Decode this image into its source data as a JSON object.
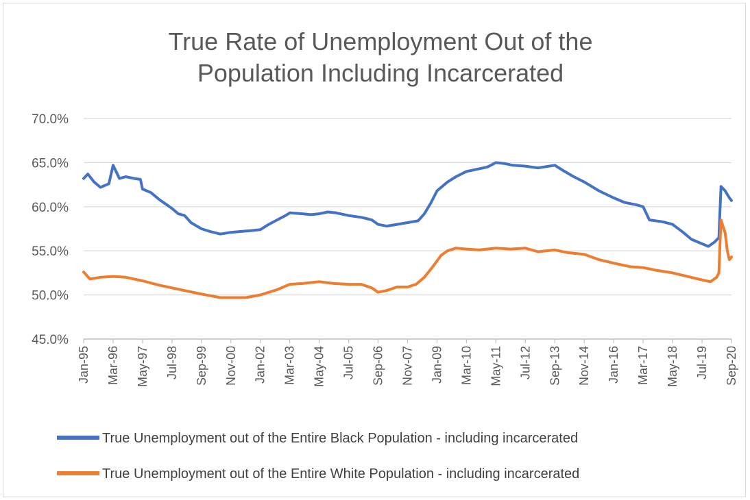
{
  "chart_data": {
    "type": "line",
    "title_lines": [
      "True Rate of Unemployment Out of the",
      "Population Including Incarcerated"
    ],
    "ylim": [
      0.45,
      0.7
    ],
    "y_ticks": [
      "45.0%",
      "50.0%",
      "55.0%",
      "60.0%",
      "65.0%",
      "70.0%"
    ],
    "y_tick_values": [
      0.45,
      0.5,
      0.55,
      0.6,
      0.65,
      0.7
    ],
    "grid": true,
    "x_range": [
      "1995-01",
      "2020-09"
    ],
    "x_ticks": [
      "Jan-95",
      "Mar-96",
      "May-97",
      "Jul-98",
      "Sep-99",
      "Nov-00",
      "Jan-02",
      "Mar-03",
      "May-04",
      "Jul-05",
      "Sep-06",
      "Nov-07",
      "Jan-09",
      "Mar-10",
      "May-11",
      "Jul-12",
      "Sep-13",
      "Nov-14",
      "Jan-16",
      "Mar-17",
      "May-18",
      "Jul-19",
      "Sep-20"
    ],
    "x_tick_dates": [
      "1995-01",
      "1996-03",
      "1997-05",
      "1998-07",
      "1999-09",
      "2000-11",
      "2002-01",
      "2003-03",
      "2004-05",
      "2005-07",
      "2006-09",
      "2007-11",
      "2009-01",
      "2010-03",
      "2011-05",
      "2012-07",
      "2013-09",
      "2014-11",
      "2016-01",
      "2017-03",
      "2018-05",
      "2019-07",
      "2020-09"
    ],
    "legend_position": "bottom",
    "series": [
      {
        "name": "True Unemployment out of the Entire Black Population - including incarcerated",
        "color": "#4472C4",
        "points": [
          [
            "1995-01",
            0.632
          ],
          [
            "1995-03",
            0.637
          ],
          [
            "1995-06",
            0.628
          ],
          [
            "1995-09",
            0.622
          ],
          [
            "1996-01",
            0.626
          ],
          [
            "1996-03",
            0.647
          ],
          [
            "1996-06",
            0.632
          ],
          [
            "1996-09",
            0.634
          ],
          [
            "1997-01",
            0.632
          ],
          [
            "1997-04",
            0.631
          ],
          [
            "1997-05",
            0.62
          ],
          [
            "1997-09",
            0.616
          ],
          [
            "1998-01",
            0.608
          ],
          [
            "1998-04",
            0.603
          ],
          [
            "1998-07",
            0.598
          ],
          [
            "1998-10",
            0.592
          ],
          [
            "1999-01",
            0.59
          ],
          [
            "1999-04",
            0.582
          ],
          [
            "1999-09",
            0.575
          ],
          [
            "2000-01",
            0.572
          ],
          [
            "2000-06",
            0.569
          ],
          [
            "2000-11",
            0.571
          ],
          [
            "2001-04",
            0.572
          ],
          [
            "2001-09",
            0.573
          ],
          [
            "2002-01",
            0.574
          ],
          [
            "2002-05",
            0.58
          ],
          [
            "2002-09",
            0.585
          ],
          [
            "2003-01",
            0.59
          ],
          [
            "2003-03",
            0.593
          ],
          [
            "2003-09",
            0.592
          ],
          [
            "2004-01",
            0.591
          ],
          [
            "2004-05",
            0.592
          ],
          [
            "2004-09",
            0.594
          ],
          [
            "2005-01",
            0.593
          ],
          [
            "2005-07",
            0.59
          ],
          [
            "2006-01",
            0.588
          ],
          [
            "2006-06",
            0.585
          ],
          [
            "2006-09",
            0.58
          ],
          [
            "2007-01",
            0.578
          ],
          [
            "2007-06",
            0.58
          ],
          [
            "2007-11",
            0.582
          ],
          [
            "2008-04",
            0.584
          ],
          [
            "2008-07",
            0.592
          ],
          [
            "2008-10",
            0.604
          ],
          [
            "2009-01",
            0.618
          ],
          [
            "2009-06",
            0.628
          ],
          [
            "2009-10",
            0.634
          ],
          [
            "2010-03",
            0.64
          ],
          [
            "2010-09",
            0.643
          ],
          [
            "2011-01",
            0.645
          ],
          [
            "2011-05",
            0.65
          ],
          [
            "2011-09",
            0.649
          ],
          [
            "2012-01",
            0.647
          ],
          [
            "2012-07",
            0.646
          ],
          [
            "2013-01",
            0.644
          ],
          [
            "2013-09",
            0.647
          ],
          [
            "2014-01",
            0.641
          ],
          [
            "2014-06",
            0.634
          ],
          [
            "2014-11",
            0.628
          ],
          [
            "2015-06",
            0.618
          ],
          [
            "2016-01",
            0.61
          ],
          [
            "2016-06",
            0.605
          ],
          [
            "2016-12",
            0.602
          ],
          [
            "2017-03",
            0.6
          ],
          [
            "2017-06",
            0.585
          ],
          [
            "2017-12",
            0.583
          ],
          [
            "2018-05",
            0.58
          ],
          [
            "2018-10",
            0.571
          ],
          [
            "2019-02",
            0.563
          ],
          [
            "2019-07",
            0.558
          ],
          [
            "2019-10",
            0.555
          ],
          [
            "2020-01",
            0.56
          ],
          [
            "2020-03",
            0.565
          ],
          [
            "2020-04",
            0.623
          ],
          [
            "2020-06",
            0.618
          ],
          [
            "2020-08",
            0.61
          ],
          [
            "2020-09",
            0.607
          ]
        ]
      },
      {
        "name": "True Unemployment out of the Entire White Population - including incarcerated",
        "color": "#ED7D31",
        "points": [
          [
            "1995-01",
            0.526
          ],
          [
            "1995-04",
            0.518
          ],
          [
            "1995-09",
            0.52
          ],
          [
            "1996-03",
            0.521
          ],
          [
            "1996-09",
            0.52
          ],
          [
            "1997-05",
            0.516
          ],
          [
            "1998-01",
            0.511
          ],
          [
            "1998-07",
            0.508
          ],
          [
            "1999-01",
            0.505
          ],
          [
            "1999-09",
            0.501
          ],
          [
            "2000-06",
            0.497
          ],
          [
            "2000-11",
            0.497
          ],
          [
            "2001-06",
            0.497
          ],
          [
            "2002-01",
            0.5
          ],
          [
            "2002-09",
            0.506
          ],
          [
            "2003-03",
            0.512
          ],
          [
            "2003-09",
            0.513
          ],
          [
            "2004-05",
            0.515
          ],
          [
            "2004-12",
            0.513
          ],
          [
            "2005-07",
            0.512
          ],
          [
            "2006-01",
            0.512
          ],
          [
            "2006-06",
            0.508
          ],
          [
            "2006-09",
            0.503
          ],
          [
            "2007-01",
            0.505
          ],
          [
            "2007-06",
            0.509
          ],
          [
            "2007-11",
            0.509
          ],
          [
            "2008-03",
            0.512
          ],
          [
            "2008-07",
            0.52
          ],
          [
            "2008-11",
            0.532
          ],
          [
            "2009-03",
            0.545
          ],
          [
            "2009-06",
            0.55
          ],
          [
            "2009-10",
            0.553
          ],
          [
            "2010-03",
            0.552
          ],
          [
            "2010-09",
            0.551
          ],
          [
            "2011-05",
            0.553
          ],
          [
            "2011-12",
            0.552
          ],
          [
            "2012-07",
            0.553
          ],
          [
            "2013-01",
            0.549
          ],
          [
            "2013-09",
            0.551
          ],
          [
            "2014-03",
            0.548
          ],
          [
            "2014-11",
            0.546
          ],
          [
            "2015-06",
            0.54
          ],
          [
            "2016-01",
            0.536
          ],
          [
            "2016-09",
            0.532
          ],
          [
            "2017-03",
            0.531
          ],
          [
            "2017-09",
            0.528
          ],
          [
            "2018-05",
            0.525
          ],
          [
            "2018-12",
            0.521
          ],
          [
            "2019-07",
            0.517
          ],
          [
            "2019-11",
            0.515
          ],
          [
            "2020-02",
            0.52
          ],
          [
            "2020-03",
            0.525
          ],
          [
            "2020-04",
            0.585
          ],
          [
            "2020-06",
            0.57
          ],
          [
            "2020-07",
            0.55
          ],
          [
            "2020-08",
            0.54
          ],
          [
            "2020-09",
            0.543
          ]
        ]
      }
    ]
  }
}
